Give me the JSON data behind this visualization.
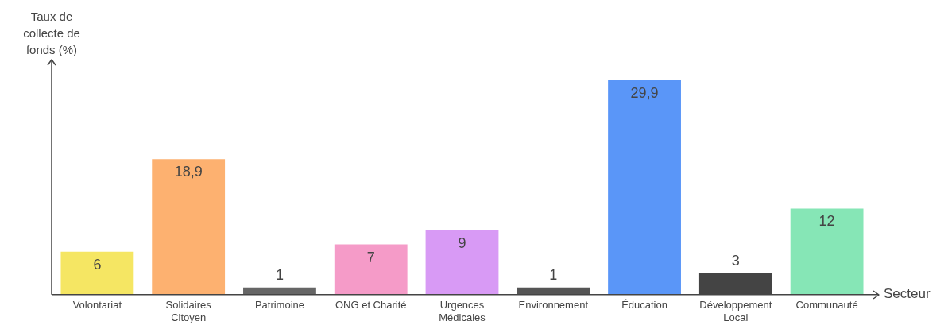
{
  "chart_data": {
    "type": "bar",
    "xlabel": "Secteur",
    "ylabel": "Taux de collecte de fonds (%)",
    "categories": [
      "Volontariat",
      "Solidaires Citoyen",
      "Patrimoine",
      "ONG et Charité",
      "Urgences Médicales",
      "Environnement",
      "Éducation",
      "Développement Local",
      "Communauté"
    ],
    "values": [
      6,
      18.9,
      1,
      7,
      9,
      1,
      29.9,
      3,
      12
    ],
    "value_labels": [
      "6",
      "18,9",
      "1",
      "7",
      "9",
      "1",
      "29,9",
      "3",
      "12"
    ],
    "colors": [
      "#f5e663",
      "#fdb170",
      "#666666",
      "#f59bc8",
      "#d89af5",
      "#555555",
      "#5a96f8",
      "#444444",
      "#86e6b6"
    ],
    "grid": false,
    "legend": false,
    "tick_labels": "x"
  }
}
